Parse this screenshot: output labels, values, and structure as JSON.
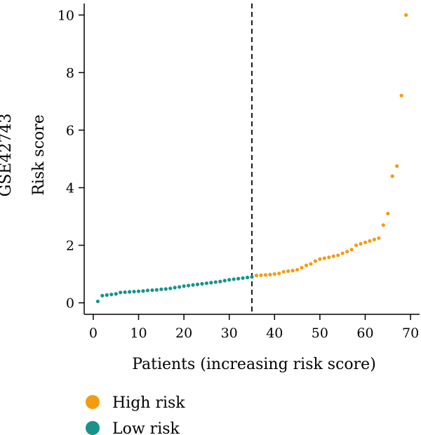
{
  "chart_data": {
    "type": "scatter",
    "dataset_label": "GSE42743",
    "ylabel": "Risk score",
    "xlabel": "Patients (increasing risk score)",
    "xlim": [
      -2,
      72
    ],
    "ylim": [
      -0.4,
      10.4
    ],
    "x_ticks": [
      0,
      10,
      20,
      30,
      40,
      50,
      60,
      70
    ],
    "y_ticks": [
      0,
      2,
      4,
      6,
      8,
      10
    ],
    "cutoff_x": 35,
    "cutoff_style": "dashed",
    "grid": false,
    "legend_position": "bottom-left",
    "series": [
      {
        "name": "High risk",
        "color": "#F39C12",
        "x": [
          36,
          37,
          38,
          39,
          40,
          41,
          42,
          43,
          44,
          45,
          46,
          47,
          48,
          49,
          50,
          51,
          52,
          53,
          54,
          55,
          56,
          57,
          58,
          59,
          60,
          61,
          62,
          63,
          64,
          65,
          66,
          67,
          68,
          69
        ],
        "y": [
          0.95,
          0.96,
          0.97,
          0.98,
          1.0,
          1.02,
          1.08,
          1.1,
          1.12,
          1.15,
          1.22,
          1.3,
          1.35,
          1.45,
          1.52,
          1.55,
          1.58,
          1.62,
          1.65,
          1.72,
          1.78,
          1.85,
          2.0,
          2.05,
          2.1,
          2.15,
          2.2,
          2.25,
          2.7,
          3.1,
          4.4,
          4.75,
          7.2,
          10.0
        ]
      },
      {
        "name": "Low risk",
        "color": "#16948C",
        "x": [
          1,
          2,
          3,
          4,
          5,
          6,
          7,
          8,
          9,
          10,
          11,
          12,
          13,
          14,
          15,
          16,
          17,
          18,
          19,
          20,
          21,
          22,
          23,
          24,
          25,
          26,
          27,
          28,
          29,
          30,
          31,
          32,
          33,
          34,
          35
        ],
        "y": [
          0.05,
          0.25,
          0.27,
          0.29,
          0.31,
          0.36,
          0.37,
          0.38,
          0.39,
          0.4,
          0.41,
          0.43,
          0.44,
          0.45,
          0.47,
          0.48,
          0.5,
          0.53,
          0.55,
          0.58,
          0.6,
          0.62,
          0.64,
          0.66,
          0.68,
          0.7,
          0.72,
          0.74,
          0.77,
          0.8,
          0.82,
          0.84,
          0.86,
          0.88,
          0.9
        ]
      }
    ]
  }
}
